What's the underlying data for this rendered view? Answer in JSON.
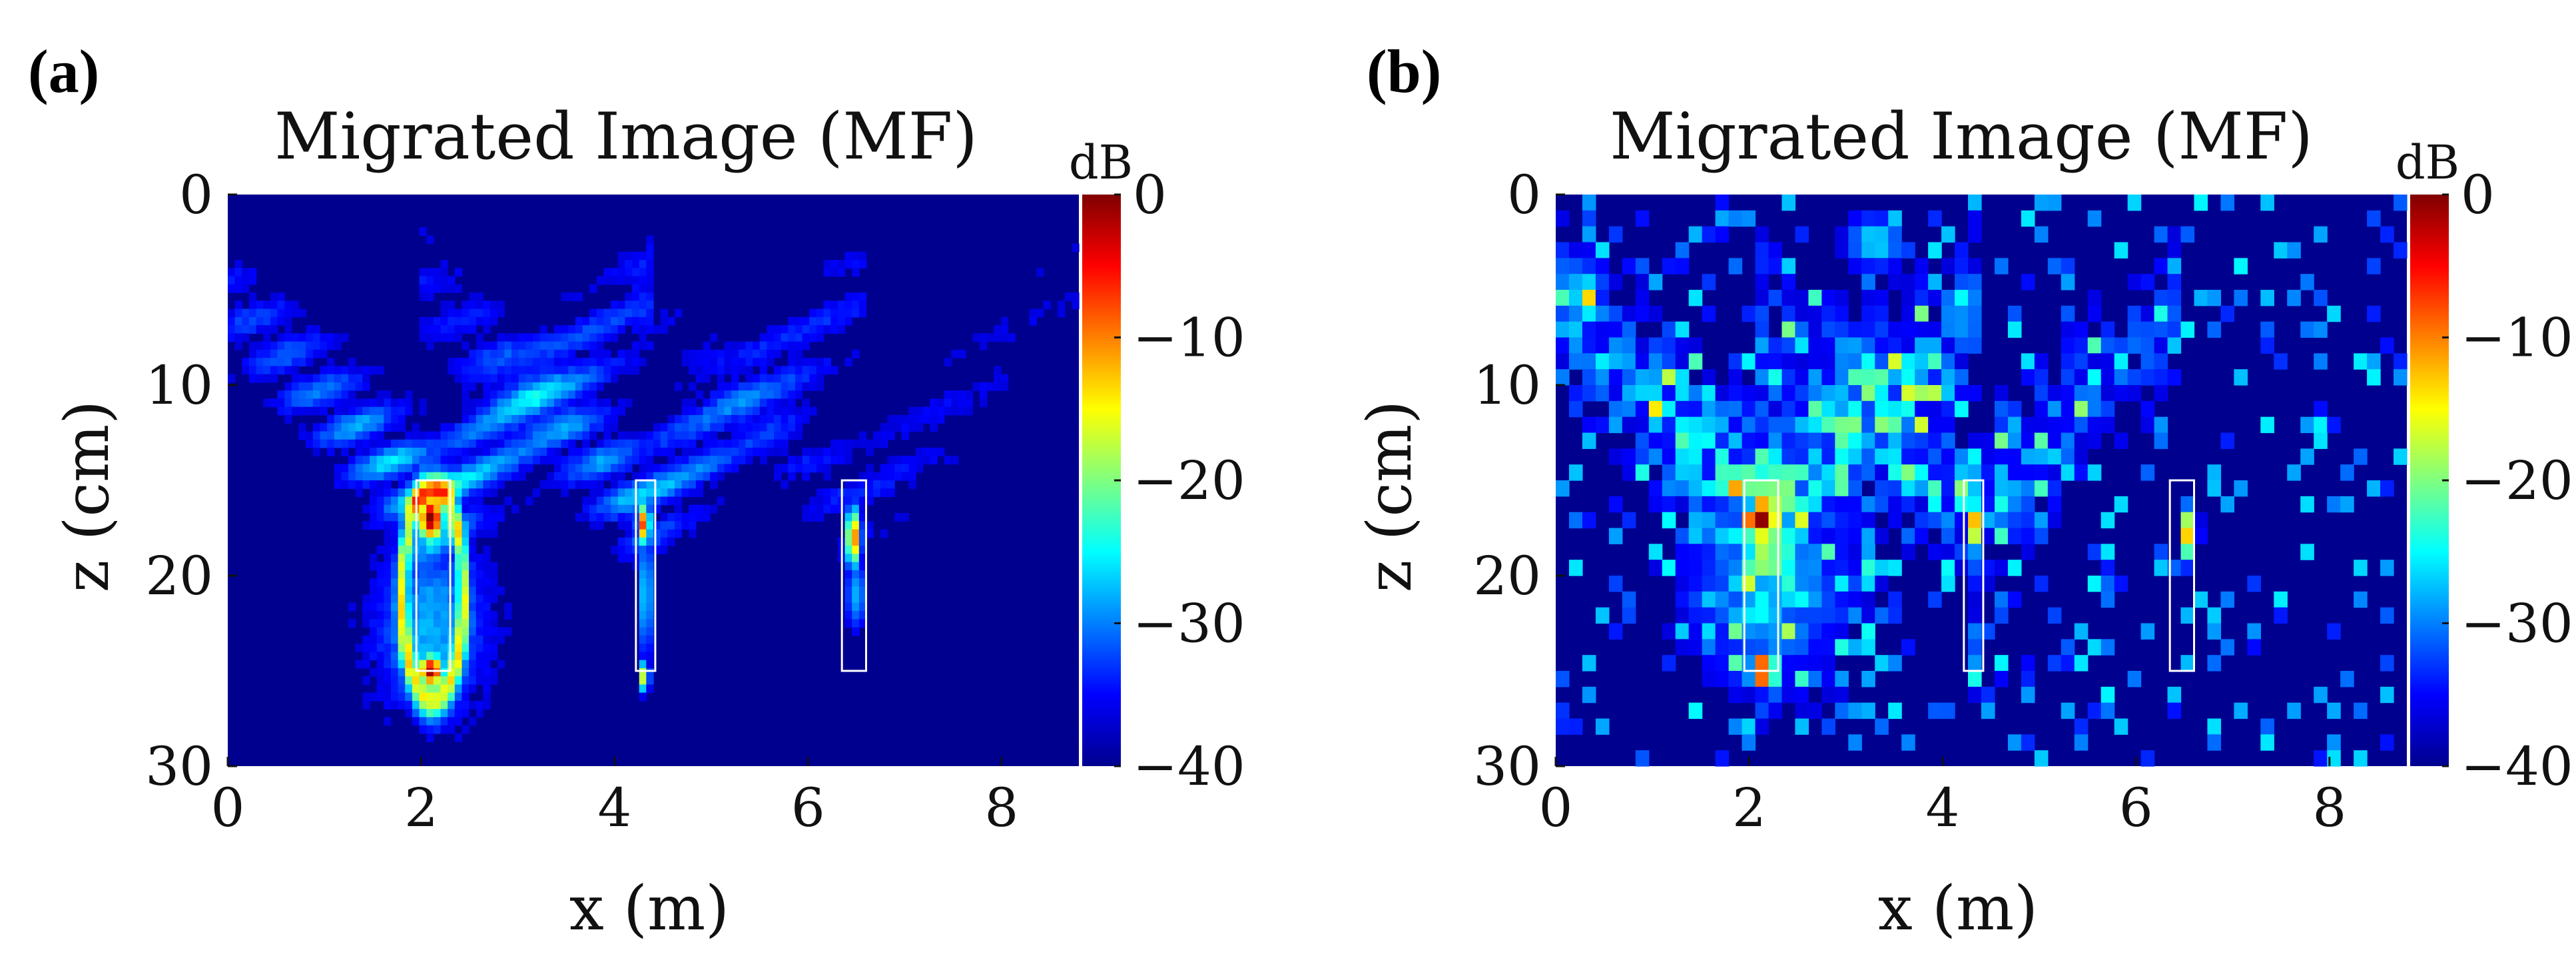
{
  "chart_data": [
    {
      "panel_label": "(a)",
      "type": "heatmap",
      "title": "Migrated Image (MF)",
      "xlabel": "x (m)",
      "ylabel": "z (cm)",
      "xlim": [
        0,
        8.8
      ],
      "ylim": [
        0,
        30
      ],
      "y_reversed": true,
      "xticks": [
        0,
        2,
        4,
        6,
        8
      ],
      "xtick_labels": [
        "0",
        "2",
        "4",
        "6",
        "8"
      ],
      "yticks": [
        0,
        10,
        20,
        30
      ],
      "ytick_labels": [
        "0",
        "10",
        "20",
        "30"
      ],
      "colorbar": {
        "label": "dB",
        "range": [
          -40,
          0
        ],
        "ticks": [
          0,
          -10,
          -20,
          -30,
          -40
        ],
        "tick_labels": [
          "0",
          "−10",
          "−20",
          "−30",
          "−40"
        ],
        "colormap": "jet"
      },
      "targets": [
        {
          "x_range": [
            1.95,
            2.3
          ],
          "z_range": [
            15,
            25
          ]
        },
        {
          "x_range": [
            4.22,
            4.42
          ],
          "z_range": [
            15,
            25
          ]
        },
        {
          "x_range": [
            6.35,
            6.6
          ],
          "z_range": [
            15,
            25
          ]
        }
      ],
      "features": [
        {
          "kind": "hotspot",
          "x": 2.1,
          "z": 17.0,
          "db": 0
        },
        {
          "kind": "hotspot",
          "x": 2.1,
          "z": 25.0,
          "db": -1
        },
        {
          "kind": "hotspot",
          "x": 4.3,
          "z": 17.3,
          "db": -6
        },
        {
          "kind": "hotspot",
          "x": 4.3,
          "z": 25.3,
          "db": -14
        },
        {
          "kind": "hotspot",
          "x": 6.47,
          "z": 18.0,
          "db": -8
        },
        {
          "kind": "hyperbola",
          "apex_x": 2.1,
          "apex_z": 16.5,
          "db": -28
        },
        {
          "kind": "hyperbola",
          "apex_x": 4.3,
          "apex_z": 16.5,
          "db": -32
        }
      ]
    },
    {
      "panel_label": "(b)",
      "type": "heatmap",
      "title": "Migrated Image (MF)",
      "xlabel": "x (m)",
      "ylabel": "z (cm)",
      "xlim": [
        0,
        8.8
      ],
      "ylim": [
        0,
        30
      ],
      "y_reversed": true,
      "xticks": [
        0,
        2,
        4,
        6,
        8
      ],
      "xtick_labels": [
        "0",
        "2",
        "4",
        "6",
        "8"
      ],
      "yticks": [
        0,
        10,
        20,
        30
      ],
      "ytick_labels": [
        "0",
        "10",
        "20",
        "30"
      ],
      "colorbar": {
        "label": "dB",
        "range": [
          -40,
          0
        ],
        "ticks": [
          0,
          -10,
          -20,
          -30,
          -40
        ],
        "tick_labels": [
          "0",
          "−10",
          "−20",
          "−30",
          "−40"
        ],
        "colormap": "jet"
      },
      "targets": [
        {
          "x_range": [
            1.95,
            2.3
          ],
          "z_range": [
            15,
            25
          ]
        },
        {
          "x_range": [
            4.22,
            4.42
          ],
          "z_range": [
            15,
            25
          ]
        },
        {
          "x_range": [
            6.35,
            6.6
          ],
          "z_range": [
            15,
            25
          ]
        }
      ],
      "features": [
        {
          "kind": "hotspot",
          "x": 2.15,
          "z": 17.0,
          "db": 0
        },
        {
          "kind": "hotspot",
          "x": 2.15,
          "z": 25.0,
          "db": -1
        },
        {
          "kind": "hotspot",
          "x": 4.32,
          "z": 17.3,
          "db": -10
        },
        {
          "kind": "hotspot",
          "x": 4.32,
          "z": 25.3,
          "db": -24
        },
        {
          "kind": "hotspot",
          "x": 6.55,
          "z": 17.8,
          "db": -12
        },
        {
          "kind": "scatter_cloud",
          "center_x": 2.6,
          "center_z": 14,
          "db": -25
        }
      ]
    }
  ]
}
